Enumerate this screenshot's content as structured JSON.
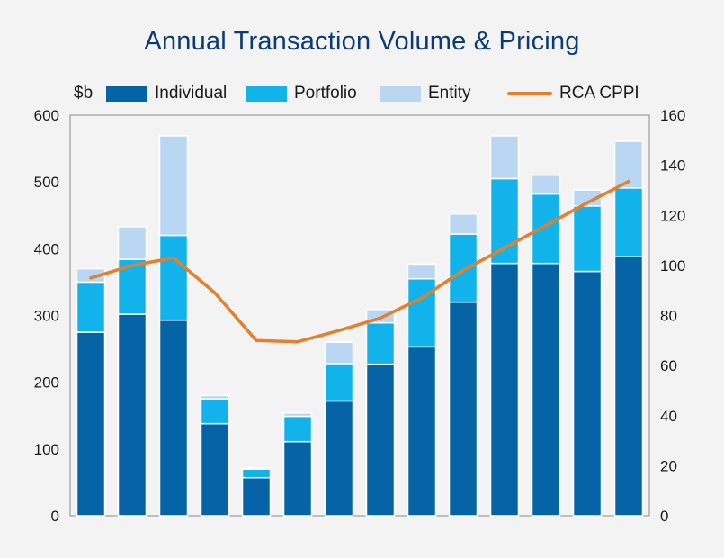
{
  "chart_data": {
    "type": "bar",
    "title": "Annual Transaction Volume & Pricing",
    "y_left_label": "$b",
    "y_left_range": [
      0,
      600
    ],
    "y_left_ticks": [
      "0",
      "100",
      "200",
      "300",
      "400",
      "500",
      "600"
    ],
    "y_right_range": [
      0,
      160
    ],
    "y_right_ticks": [
      "0",
      "20",
      "40",
      "60",
      "80",
      "100",
      "120",
      "140",
      "160"
    ],
    "stacked": true,
    "grid": false,
    "legend_position": "top",
    "categories": [
      "",
      "",
      "",
      "",
      "",
      "",
      "",
      "",
      "",
      "",
      "",
      "",
      "",
      ""
    ],
    "series": [
      {
        "name": "Individual",
        "type": "bar",
        "axis": "left",
        "color": "#0563a6",
        "values": [
          275,
          302,
          293,
          138,
          57,
          111,
          172,
          227,
          253,
          320,
          378,
          378,
          366,
          388
        ]
      },
      {
        "name": "Portfolio",
        "type": "bar",
        "axis": "left",
        "color": "#12b2ea",
        "values": [
          75,
          82,
          127,
          37,
          13,
          38,
          56,
          62,
          102,
          102,
          127,
          104,
          98,
          103
        ]
      },
      {
        "name": "Entity",
        "type": "bar",
        "axis": "left",
        "color": "#b9d6f3",
        "values": [
          20,
          49,
          149,
          5,
          2,
          5,
          32,
          20,
          22,
          30,
          64,
          28,
          24,
          70
        ]
      },
      {
        "name": "RCA CPPI",
        "type": "line",
        "axis": "right",
        "color": "#e57f2b",
        "values": [
          95,
          100,
          103,
          89,
          70,
          69.5,
          74,
          79,
          87,
          98,
          107,
          116,
          125,
          133.5
        ]
      }
    ]
  }
}
